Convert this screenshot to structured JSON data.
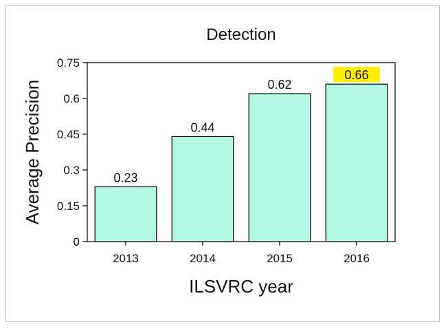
{
  "chart_data": {
    "type": "bar",
    "title": "Detection",
    "xlabel": "ILSVRC year",
    "ylabel": "Average Precision",
    "categories": [
      "2013",
      "2014",
      "2015",
      "2016"
    ],
    "values": [
      0.23,
      0.44,
      0.62,
      0.66
    ],
    "value_labels": [
      "0.23",
      "0.44",
      "0.62",
      "0.66"
    ],
    "ylim": [
      0,
      0.75
    ],
    "yticks": [
      0,
      0.15,
      0.3,
      0.45,
      0.6,
      0.75
    ],
    "ytick_labels": [
      "0",
      "0.15",
      "0.3",
      "0.45",
      "0.6",
      "0.75"
    ],
    "grid": false,
    "bar_color": "#b3f7e4",
    "highlight_index": 3,
    "highlight_color": "#ffee00"
  }
}
